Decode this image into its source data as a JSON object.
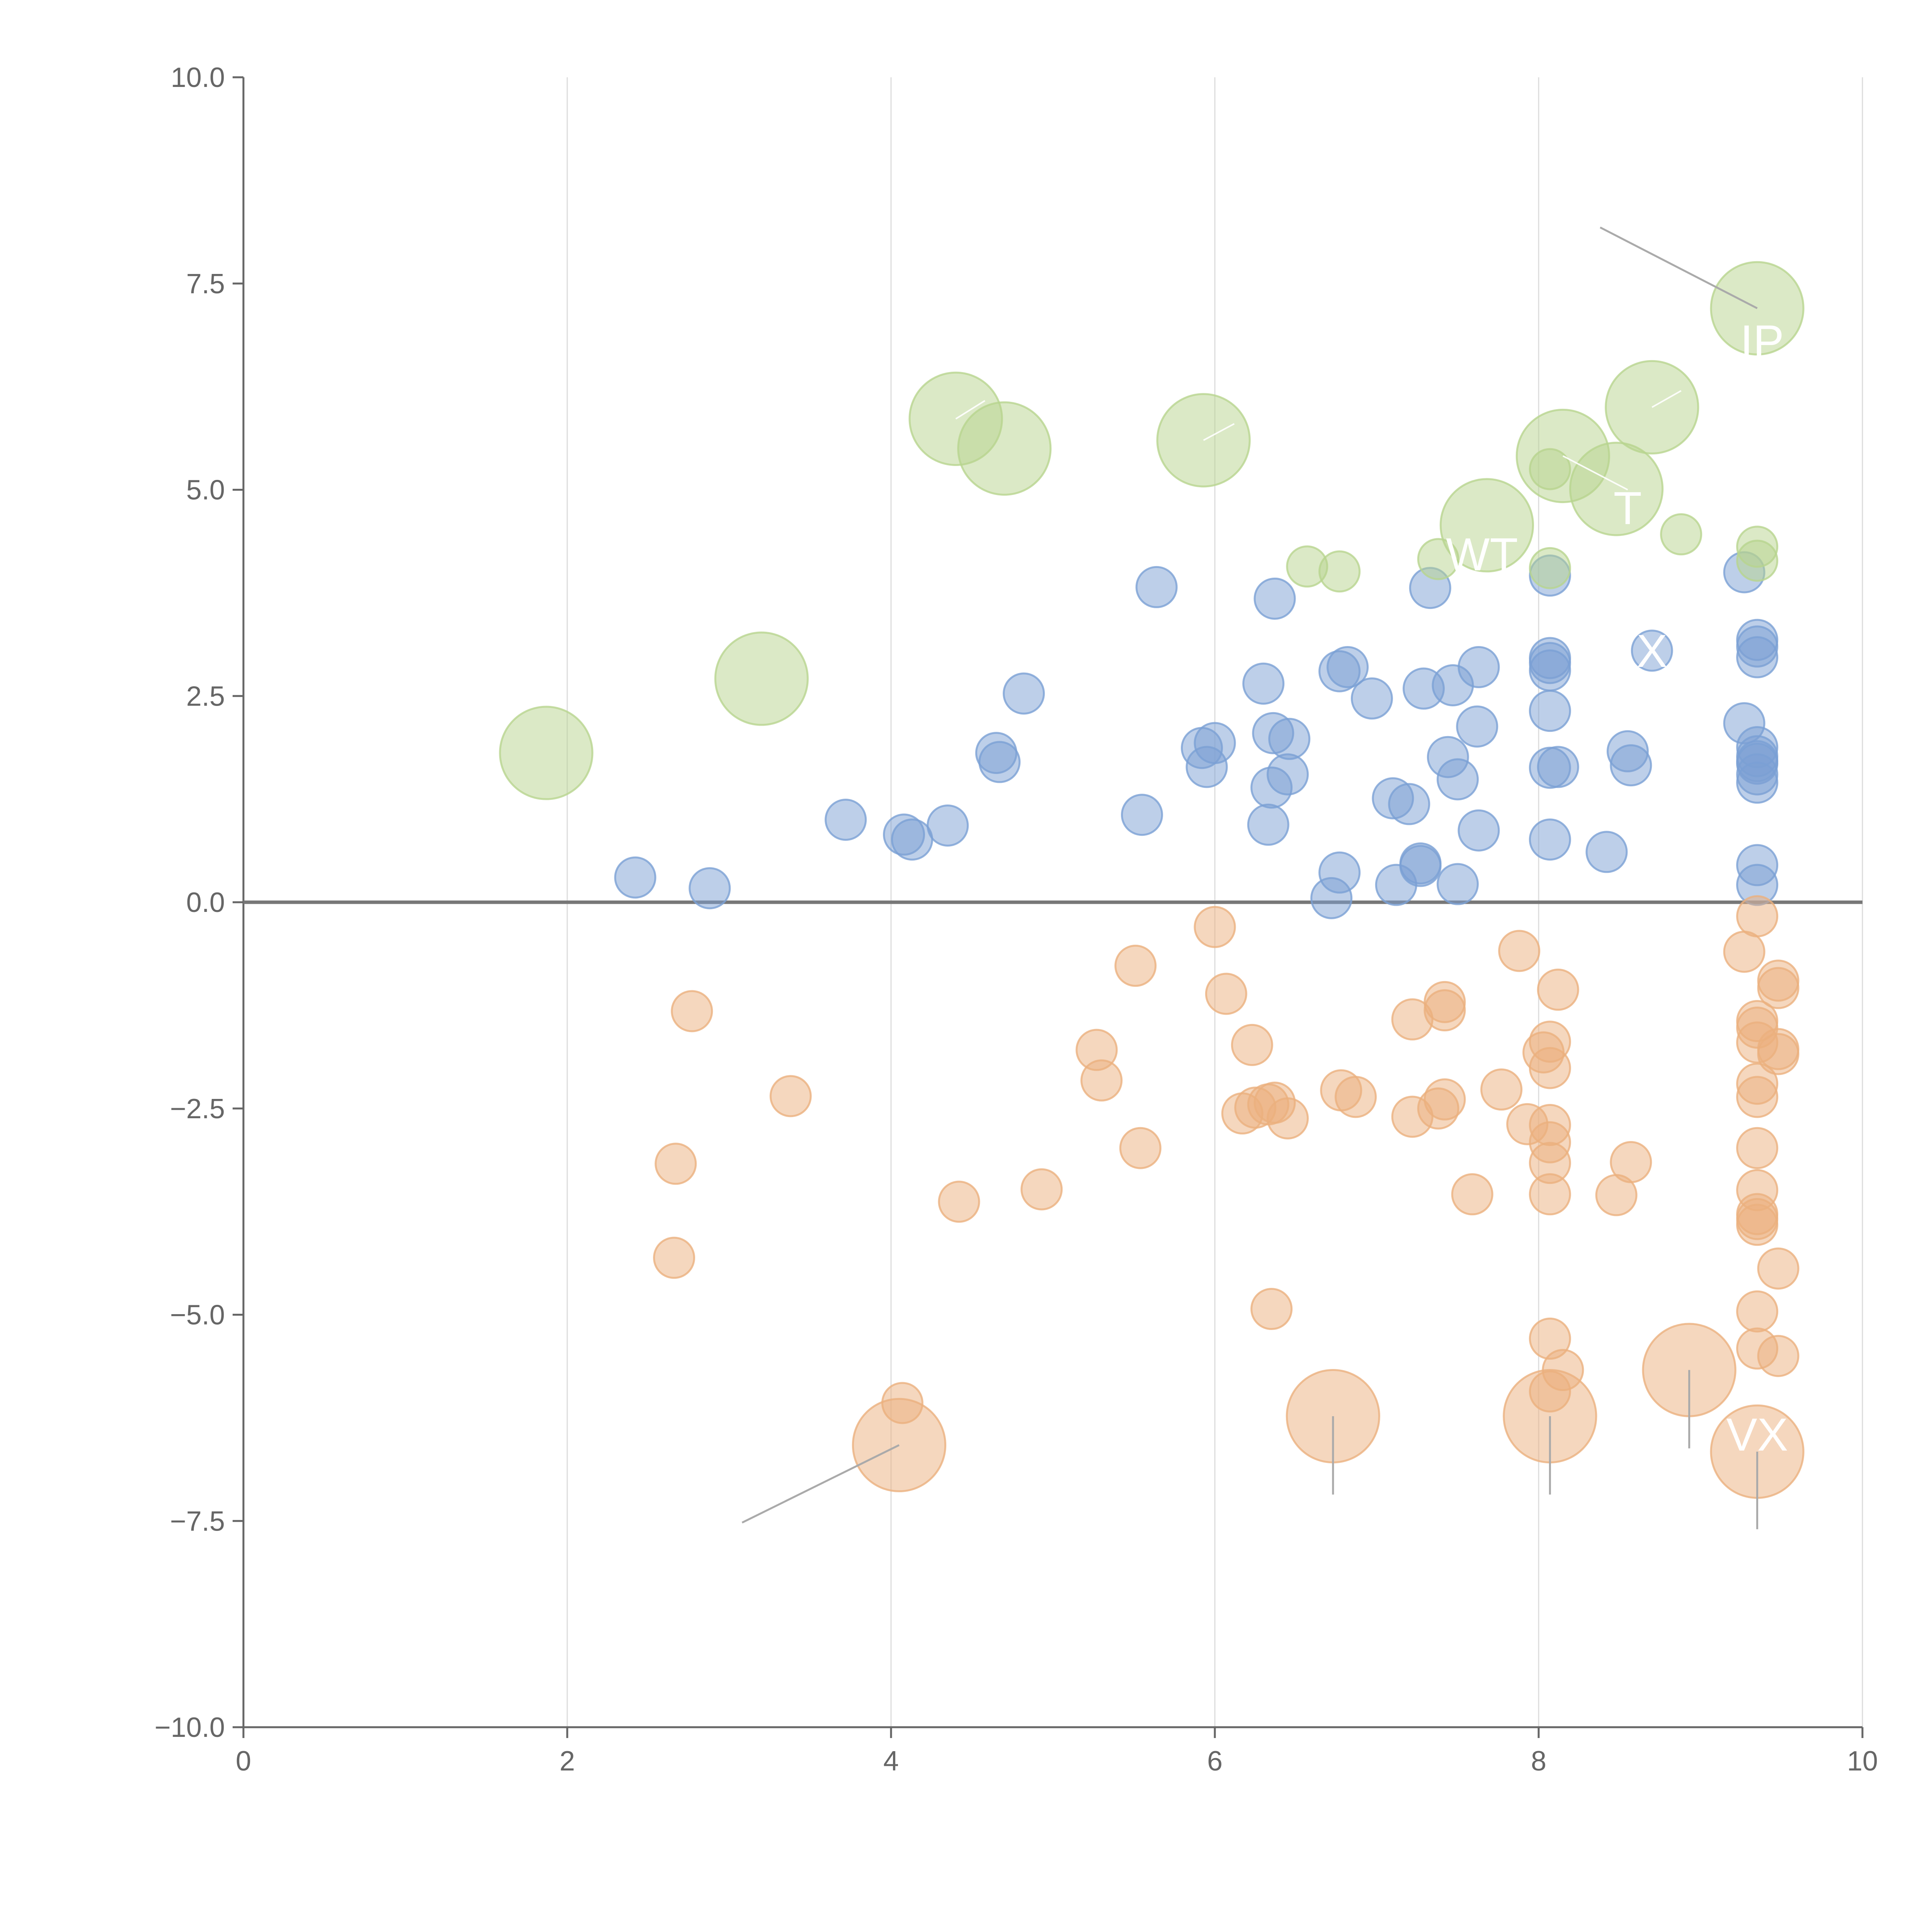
{
  "colors": {
    "positive": "#7ba0d4",
    "negative": "#ebb07e",
    "highlight": "#b8d48e",
    "axis": "#666666",
    "grid": "#dcdcdc",
    "zero": "#777777"
  },
  "chart_data": {
    "type": "scatter",
    "title": "",
    "xlabel": "",
    "ylabel": "",
    "xlim": [
      0,
      10
    ],
    "ylim": [
      -10,
      10
    ],
    "x_ticks": [
      "0",
      "2",
      "4",
      "6",
      "8",
      "10"
    ],
    "y_ticks": [
      "10.0",
      "7.5",
      "5.0",
      "2.5",
      "0.0",
      "−2.5",
      "−5.0",
      "−7.5",
      "−10.0"
    ],
    "x_tick_values": [
      0,
      2,
      4,
      6,
      8,
      10
    ],
    "y_tick_values": [
      10,
      7.5,
      5,
      2.5,
      0,
      -2.5,
      -5,
      -7.5,
      -10
    ],
    "grid": "vertical",
    "zero_line": true,
    "size_levels": {
      "small": 1,
      "large": 2.3
    },
    "series": [
      {
        "name": "positive",
        "color_key": "positive",
        "points": [
          [
            2.42,
            0.3
          ],
          [
            2.88,
            0.17
          ],
          [
            3.72,
            1.0
          ],
          [
            4.08,
            0.82
          ],
          [
            4.13,
            0.76
          ],
          [
            4.35,
            0.93
          ],
          [
            4.65,
            1.81
          ],
          [
            4.67,
            1.7
          ],
          [
            4.82,
            2.53
          ],
          [
            5.55,
            1.06
          ],
          [
            5.64,
            3.82
          ],
          [
            5.92,
            1.87
          ],
          [
            5.95,
            1.64
          ],
          [
            6.0,
            1.93
          ],
          [
            6.3,
            2.65
          ],
          [
            6.33,
            0.94
          ],
          [
            6.35,
            1.39
          ],
          [
            6.36,
            2.05
          ],
          [
            6.37,
            3.68
          ],
          [
            6.45,
            1.55
          ],
          [
            6.46,
            1.98
          ],
          [
            6.72,
            0.05
          ],
          [
            6.77,
            2.8
          ],
          [
            6.77,
            0.36
          ],
          [
            6.82,
            2.85
          ],
          [
            6.97,
            2.47
          ],
          [
            7.1,
            1.26
          ],
          [
            7.12,
            0.21
          ],
          [
            7.2,
            1.19
          ],
          [
            7.27,
            0.44
          ],
          [
            7.27,
            0.47
          ],
          [
            7.29,
            2.59
          ],
          [
            7.33,
            3.81
          ],
          [
            7.44,
            1.76
          ],
          [
            7.47,
            2.63
          ],
          [
            7.5,
            1.49
          ],
          [
            7.5,
            0.22
          ],
          [
            7.62,
            2.13
          ],
          [
            7.63,
            0.87
          ],
          [
            7.63,
            2.85
          ],
          [
            8.07,
            3.96
          ],
          [
            8.07,
            2.32
          ],
          [
            8.07,
            1.63
          ],
          [
            8.07,
            0.76
          ],
          [
            8.07,
            2.96
          ],
          [
            8.07,
            2.9
          ],
          [
            8.07,
            2.81
          ],
          [
            8.12,
            1.64
          ],
          [
            8.42,
            0.61
          ],
          [
            8.55,
            1.83
          ],
          [
            8.57,
            1.66
          ],
          [
            8.7,
            3.05
          ],
          [
            9.27,
            4.0
          ],
          [
            9.27,
            2.17
          ],
          [
            9.35,
            3.18
          ],
          [
            9.35,
            3.1
          ],
          [
            9.35,
            2.97
          ],
          [
            9.35,
            1.88
          ],
          [
            9.35,
            1.77
          ],
          [
            9.35,
            1.71
          ],
          [
            9.35,
            1.68
          ],
          [
            9.35,
            1.55
          ],
          [
            9.35,
            1.45
          ],
          [
            9.35,
            0.45
          ],
          [
            9.35,
            0.21
          ]
        ]
      },
      {
        "name": "negative",
        "color_key": "negative",
        "points": [
          [
            2.66,
            -4.31
          ],
          [
            2.67,
            -3.17
          ],
          [
            2.77,
            -1.32
          ],
          [
            3.38,
            -2.35
          ],
          [
            4.07,
            -6.07
          ],
          [
            4.42,
            -3.63
          ],
          [
            4.93,
            -3.48
          ],
          [
            5.27,
            -1.79
          ],
          [
            5.3,
            -2.16
          ],
          [
            5.51,
            -0.77
          ],
          [
            5.54,
            -2.98
          ],
          [
            6.0,
            -0.3
          ],
          [
            6.07,
            -1.11
          ],
          [
            6.17,
            -2.56
          ],
          [
            6.23,
            -1.73
          ],
          [
            6.25,
            -2.49
          ],
          [
            6.33,
            -2.45
          ],
          [
            6.35,
            -4.93
          ],
          [
            6.37,
            -2.43
          ],
          [
            6.45,
            -2.62
          ],
          [
            6.78,
            -2.28
          ],
          [
            6.87,
            -2.36
          ],
          [
            7.22,
            -1.42
          ],
          [
            7.22,
            -2.6
          ],
          [
            7.38,
            -2.5
          ],
          [
            7.42,
            -2.39
          ],
          [
            7.42,
            -1.21
          ],
          [
            7.42,
            -1.31
          ],
          [
            7.59,
            -3.54
          ],
          [
            7.77,
            -2.27
          ],
          [
            7.88,
            -0.59
          ],
          [
            7.93,
            -2.69
          ],
          [
            8.03,
            -1.82
          ],
          [
            8.07,
            -2.01
          ],
          [
            8.07,
            -1.69
          ],
          [
            8.07,
            -2.7
          ],
          [
            8.07,
            -2.91
          ],
          [
            8.07,
            -3.16
          ],
          [
            8.07,
            -3.54
          ],
          [
            8.07,
            -5.29
          ],
          [
            8.07,
            -5.93
          ],
          [
            8.12,
            -1.06
          ],
          [
            8.15,
            -5.67
          ],
          [
            8.48,
            -3.55
          ],
          [
            8.57,
            -3.15
          ],
          [
            9.27,
            -0.6
          ],
          [
            9.35,
            -0.17
          ],
          [
            9.35,
            -1.44
          ],
          [
            9.35,
            -1.52
          ],
          [
            9.35,
            -1.7
          ],
          [
            9.35,
            -2.2
          ],
          [
            9.35,
            -2.36
          ],
          [
            9.35,
            -2.98
          ],
          [
            9.35,
            -3.49
          ],
          [
            9.35,
            -3.78
          ],
          [
            9.35,
            -3.84
          ],
          [
            9.35,
            -3.91
          ],
          [
            9.35,
            -4.96
          ],
          [
            9.35,
            -5.41
          ],
          [
            9.48,
            -0.95
          ],
          [
            9.48,
            -1.04
          ],
          [
            9.48,
            -1.78
          ],
          [
            9.48,
            -1.84
          ],
          [
            9.48,
            -4.44
          ],
          [
            9.48,
            -5.5
          ]
        ]
      },
      {
        "name": "highlight",
        "color_key": "highlight",
        "points": [
          [
            6.57,
            4.07
          ],
          [
            6.77,
            4.01
          ],
          [
            7.38,
            4.16
          ],
          [
            8.07,
            4.05
          ],
          [
            8.07,
            5.25
          ],
          [
            8.88,
            4.46
          ],
          [
            9.35,
            4.31
          ],
          [
            9.35,
            4.14
          ]
        ]
      }
    ],
    "large_points": [
      {
        "x": 1.87,
        "y": 1.81,
        "color_key": "highlight"
      },
      {
        "x": 3.2,
        "y": 2.71,
        "color_key": "highlight"
      },
      {
        "x": 4.4,
        "y": 5.86,
        "color_key": "highlight"
      },
      {
        "x": 4.7,
        "y": 5.5,
        "color_key": "highlight"
      },
      {
        "x": 5.93,
        "y": 5.6,
        "color_key": "highlight"
      },
      {
        "x": 7.68,
        "y": 4.57,
        "color_key": "highlight"
      },
      {
        "x": 8.15,
        "y": 5.41,
        "color_key": "highlight"
      },
      {
        "x": 8.48,
        "y": 5.01,
        "color_key": "highlight"
      },
      {
        "x": 8.7,
        "y": 6.0,
        "color_key": "highlight"
      },
      {
        "x": 9.35,
        "y": 7.2,
        "color_key": "highlight"
      },
      {
        "x": 4.05,
        "y": -6.58,
        "color_key": "negative"
      },
      {
        "x": 6.73,
        "y": -6.23,
        "color_key": "negative"
      },
      {
        "x": 8.07,
        "y": -6.23,
        "color_key": "negative"
      },
      {
        "x": 8.93,
        "y": -5.67,
        "color_key": "negative"
      },
      {
        "x": 9.35,
        "y": -6.66,
        "color_key": "negative"
      }
    ],
    "annotations": [
      {
        "text": "",
        "x": 9.35,
        "y": 7.2,
        "line_to": [
          8.38,
          8.18
        ],
        "style": "gray"
      },
      {
        "text": "",
        "x": 4.05,
        "y": -6.58,
        "line_to": [
          3.08,
          -7.52
        ],
        "style": "gray"
      },
      {
        "text": "",
        "x": 6.73,
        "y": -6.23,
        "line_to": [
          6.73,
          -7.18
        ],
        "style": "gray"
      },
      {
        "text": "",
        "x": 8.07,
        "y": -6.23,
        "line_to": [
          8.07,
          -7.18
        ],
        "style": "gray"
      },
      {
        "text": "",
        "x": 8.93,
        "y": -5.67,
        "line_to": [
          8.93,
          -6.62
        ],
        "style": "gray"
      },
      {
        "text": "",
        "x": 9.35,
        "y": -6.66,
        "line_to": [
          9.35,
          -7.6
        ],
        "style": "gray"
      },
      {
        "text": "",
        "x": 4.4,
        "y": 5.86,
        "line_to": [
          4.58,
          6.08
        ],
        "style": "white"
      },
      {
        "text": "",
        "x": 5.93,
        "y": 5.6,
        "line_to": [
          6.12,
          5.8
        ],
        "style": "white"
      },
      {
        "text": "",
        "x": 8.7,
        "y": 6.0,
        "line_to": [
          8.88,
          6.2
        ],
        "style": "white"
      },
      {
        "text": "",
        "x": 8.15,
        "y": 5.41,
        "line_to": [
          8.55,
          5.0
        ],
        "style": "white"
      },
      {
        "text": "WT",
        "x": 7.65,
        "y": 4.22,
        "style": "label"
      },
      {
        "text": "T",
        "x": 8.55,
        "y": 4.78,
        "style": "label"
      },
      {
        "text": "X",
        "x": 8.7,
        "y": 3.05,
        "style": "label"
      },
      {
        "text": "VX",
        "x": 9.35,
        "y": -6.45,
        "style": "label"
      },
      {
        "text": "IP",
        "x": 9.38,
        "y": 6.8,
        "style": "label"
      }
    ]
  }
}
